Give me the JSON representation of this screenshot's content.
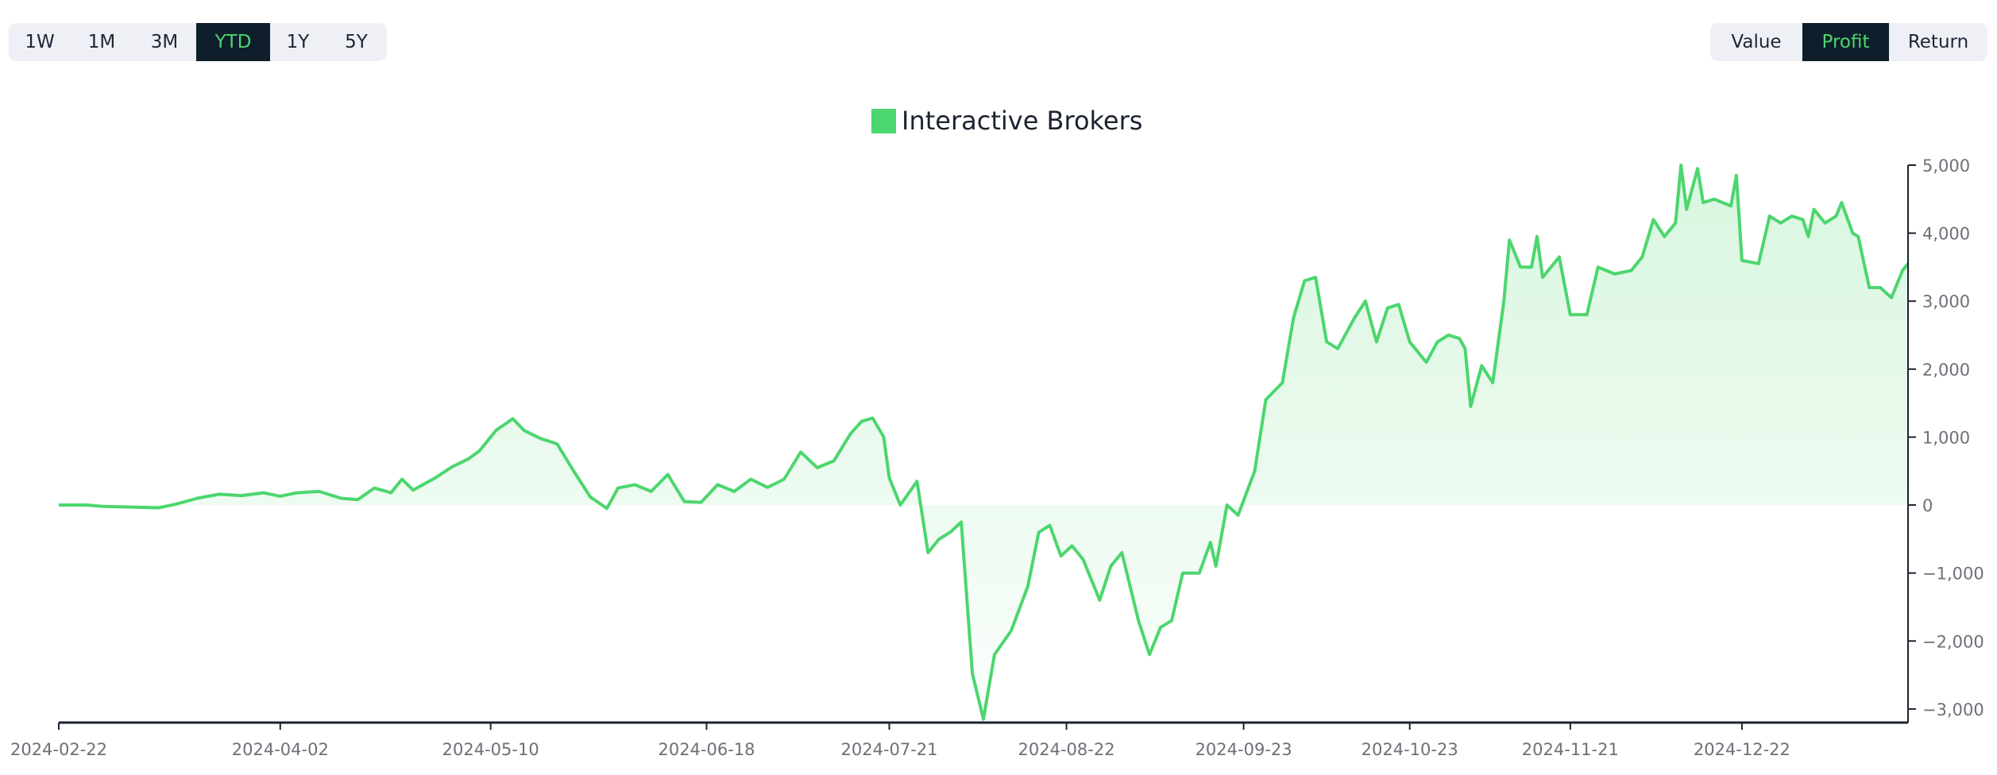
{
  "range_selector": {
    "options": [
      "1W",
      "1M",
      "3M",
      "YTD",
      "1Y",
      "5Y"
    ],
    "selected": "YTD"
  },
  "mode_selector": {
    "options": [
      "Value",
      "Profit",
      "Return"
    ],
    "selected": "Profit"
  },
  "colors": {
    "series": "#4cd66e",
    "active_bg": "#0e1e2b",
    "active_text": "#4cd66e",
    "selector_bg": "#eef0f6",
    "axis": "#1b2230",
    "tick_text": "#6c7077"
  },
  "chart_data": {
    "type": "area",
    "legend": "top-center",
    "grid": false,
    "xlim": [
      "2024-02-22",
      "2025-01-21"
    ],
    "ylim": [
      -3200,
      5000
    ],
    "x_ticks": [
      "2024-02-22",
      "2024-04-02",
      "2024-05-10",
      "2024-06-18",
      "2024-07-21",
      "2024-08-22",
      "2024-09-23",
      "2024-10-23",
      "2024-11-21",
      "2024-12-22"
    ],
    "y_ticks": [
      -3000,
      -2000,
      -1000,
      0,
      1000,
      2000,
      3000,
      4000,
      5000
    ],
    "y_tick_labels": [
      "−3,000",
      "−2,000",
      "−1,000",
      "0",
      "1,000",
      "2,000",
      "3,000",
      "4,000",
      "5,000"
    ],
    "series": [
      {
        "name": "Interactive Brokers",
        "points": [
          [
            "2024-02-22",
            0
          ],
          [
            "2024-02-27",
            0
          ],
          [
            "2024-03-01",
            -20
          ],
          [
            "2024-03-06",
            -30
          ],
          [
            "2024-03-11",
            -40
          ],
          [
            "2024-03-14",
            10
          ],
          [
            "2024-03-18",
            100
          ],
          [
            "2024-03-22",
            160
          ],
          [
            "2024-03-26",
            140
          ],
          [
            "2024-03-30",
            180
          ],
          [
            "2024-04-02",
            130
          ],
          [
            "2024-04-05",
            180
          ],
          [
            "2024-04-09",
            200
          ],
          [
            "2024-04-13",
            100
          ],
          [
            "2024-04-16",
            80
          ],
          [
            "2024-04-19",
            250
          ],
          [
            "2024-04-22",
            180
          ],
          [
            "2024-04-24",
            380
          ],
          [
            "2024-04-26",
            220
          ],
          [
            "2024-04-30",
            400
          ],
          [
            "2024-05-03",
            560
          ],
          [
            "2024-05-06",
            680
          ],
          [
            "2024-05-08",
            800
          ],
          [
            "2024-05-11",
            1100
          ],
          [
            "2024-05-14",
            1270
          ],
          [
            "2024-05-16",
            1100
          ],
          [
            "2024-05-19",
            980
          ],
          [
            "2024-05-22",
            900
          ],
          [
            "2024-05-25",
            500
          ],
          [
            "2024-05-28",
            120
          ],
          [
            "2024-05-31",
            -50
          ],
          [
            "2024-06-02",
            250
          ],
          [
            "2024-06-05",
            300
          ],
          [
            "2024-06-08",
            200
          ],
          [
            "2024-06-11",
            450
          ],
          [
            "2024-06-14",
            50
          ],
          [
            "2024-06-17",
            40
          ],
          [
            "2024-06-20",
            300
          ],
          [
            "2024-06-23",
            200
          ],
          [
            "2024-06-26",
            380
          ],
          [
            "2024-06-29",
            260
          ],
          [
            "2024-07-02",
            380
          ],
          [
            "2024-07-05",
            780
          ],
          [
            "2024-07-08",
            550
          ],
          [
            "2024-07-11",
            650
          ],
          [
            "2024-07-14",
            1050
          ],
          [
            "2024-07-16",
            1230
          ],
          [
            "2024-07-18",
            1280
          ],
          [
            "2024-07-20",
            1000
          ],
          [
            "2024-07-21",
            400
          ],
          [
            "2024-07-23",
            0
          ],
          [
            "2024-07-26",
            350
          ],
          [
            "2024-07-28",
            -700
          ],
          [
            "2024-07-30",
            -500
          ],
          [
            "2024-08-01",
            -400
          ],
          [
            "2024-08-03",
            -250
          ],
          [
            "2024-08-05",
            -2480
          ],
          [
            "2024-08-07",
            -3150
          ],
          [
            "2024-08-09",
            -2200
          ],
          [
            "2024-08-12",
            -1850
          ],
          [
            "2024-08-15",
            -1200
          ],
          [
            "2024-08-17",
            -400
          ],
          [
            "2024-08-19",
            -300
          ],
          [
            "2024-08-21",
            -750
          ],
          [
            "2024-08-23",
            -600
          ],
          [
            "2024-08-25",
            -800
          ],
          [
            "2024-08-28",
            -1400
          ],
          [
            "2024-08-30",
            -900
          ],
          [
            "2024-09-01",
            -700
          ],
          [
            "2024-09-04",
            -1700
          ],
          [
            "2024-09-06",
            -2200
          ],
          [
            "2024-09-08",
            -1800
          ],
          [
            "2024-09-10",
            -1700
          ],
          [
            "2024-09-12",
            -1000
          ],
          [
            "2024-09-15",
            -1000
          ],
          [
            "2024-09-17",
            -550
          ],
          [
            "2024-09-18",
            -900
          ],
          [
            "2024-09-20",
            0
          ],
          [
            "2024-09-22",
            -150
          ],
          [
            "2024-09-25",
            500
          ],
          [
            "2024-09-27",
            1550
          ],
          [
            "2024-09-30",
            1800
          ],
          [
            "2024-10-02",
            2750
          ],
          [
            "2024-10-04",
            3300
          ],
          [
            "2024-10-06",
            3350
          ],
          [
            "2024-10-08",
            2400
          ],
          [
            "2024-10-10",
            2300
          ],
          [
            "2024-10-13",
            2750
          ],
          [
            "2024-10-15",
            3000
          ],
          [
            "2024-10-17",
            2400
          ],
          [
            "2024-10-19",
            2900
          ],
          [
            "2024-10-21",
            2950
          ],
          [
            "2024-10-23",
            2400
          ],
          [
            "2024-10-26",
            2100
          ],
          [
            "2024-10-28",
            2400
          ],
          [
            "2024-10-30",
            2500
          ],
          [
            "2024-11-01",
            2450
          ],
          [
            "2024-11-02",
            2300
          ],
          [
            "2024-11-03",
            1450
          ],
          [
            "2024-11-05",
            2050
          ],
          [
            "2024-11-07",
            1800
          ],
          [
            "2024-11-09",
            3000
          ],
          [
            "2024-11-10",
            3900
          ],
          [
            "2024-11-12",
            3500
          ],
          [
            "2024-11-14",
            3500
          ],
          [
            "2024-11-15",
            3950
          ],
          [
            "2024-11-16",
            3350
          ],
          [
            "2024-11-19",
            3650
          ],
          [
            "2024-11-21",
            2800
          ],
          [
            "2024-11-24",
            2800
          ],
          [
            "2024-11-26",
            3500
          ],
          [
            "2024-11-29",
            3400
          ],
          [
            "2024-12-02",
            3450
          ],
          [
            "2024-12-04",
            3650
          ],
          [
            "2024-12-06",
            4200
          ],
          [
            "2024-12-08",
            3950
          ],
          [
            "2024-12-10",
            4150
          ],
          [
            "2024-12-11",
            5000
          ],
          [
            "2024-12-12",
            4350
          ],
          [
            "2024-12-14",
            4950
          ],
          [
            "2024-12-15",
            4450
          ],
          [
            "2024-12-17",
            4500
          ],
          [
            "2024-12-20",
            4400
          ],
          [
            "2024-12-21",
            4850
          ],
          [
            "2024-12-22",
            3600
          ],
          [
            "2024-12-25",
            3550
          ],
          [
            "2024-12-27",
            4250
          ],
          [
            "2024-12-29",
            4150
          ],
          [
            "2024-12-31",
            4250
          ],
          [
            "2025-01-02",
            4200
          ],
          [
            "2025-01-03",
            3950
          ],
          [
            "2025-01-04",
            4350
          ],
          [
            "2025-01-06",
            4150
          ],
          [
            "2025-01-08",
            4250
          ],
          [
            "2025-01-09",
            4450
          ],
          [
            "2025-01-11",
            4000
          ],
          [
            "2025-01-12",
            3950
          ],
          [
            "2025-01-14",
            3200
          ],
          [
            "2025-01-16",
            3200
          ],
          [
            "2025-01-18",
            3050
          ],
          [
            "2025-01-20",
            3450
          ],
          [
            "2025-01-21",
            3550
          ]
        ]
      }
    ]
  }
}
